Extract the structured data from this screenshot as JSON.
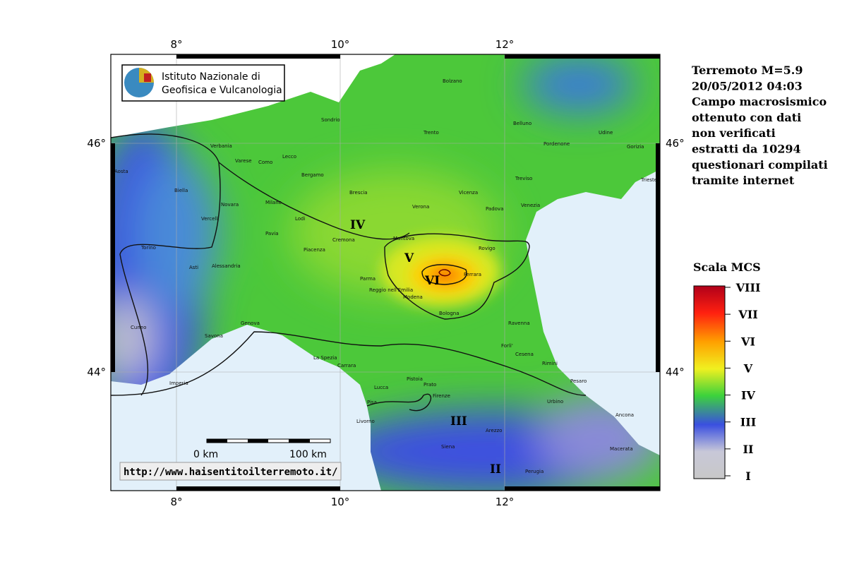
{
  "logo": {
    "line1": "Istituto Nazionale di",
    "line2": "Geofisica e Vulcanologia"
  },
  "url": "http://www.haisentitoilterremoto.it/",
  "scale_bar": {
    "start": "0 km",
    "end": "100 km"
  },
  "title_lines": [
    "Terremoto M=5.9",
    "20/05/2012 04:03",
    "Campo macrosismico",
    "ottenuto con dati",
    "non verificati",
    "estratti da 10294",
    "questionari compilati",
    "tramite internet"
  ],
  "longitude_labels": [
    "8°",
    "10°",
    "12°"
  ],
  "latitude_labels": [
    "46°",
    "44°"
  ],
  "intensity_zones": [
    "IV",
    "V",
    "VI",
    "III",
    "II"
  ],
  "legend": {
    "title": "Scala MCS",
    "levels": [
      "VIII",
      "VII",
      "VI",
      "V",
      "IV",
      "III",
      "II",
      "I"
    ]
  },
  "cities": [
    "Bolzano",
    "Sondrio",
    "Trento",
    "Belluno",
    "Udine",
    "Pordenone",
    "Gorizia",
    "Trieste",
    "Aosta",
    "Verbania",
    "Varese",
    "Como",
    "Lecco",
    "Bergamo",
    "Biella",
    "Brescia",
    "Vicenza",
    "Treviso",
    "Novara",
    "Milano",
    "Verona",
    "Padova",
    "Venezia",
    "Vercelli",
    "Lodi",
    "Pavia",
    "Cremona",
    "Piacenza",
    "Mantova",
    "Rovigo",
    "Torino",
    "Asti",
    "Alessandria",
    "Parma",
    "Ferrara",
    "Reggio nell'Emilia",
    "Modena",
    "Bologna",
    "Ravenna",
    "Genova",
    "Savona",
    "Cuneo",
    "Forli'",
    "Cesena",
    "Rimini",
    "La Spezia",
    "Carrara",
    "Pesaro",
    "Imperia",
    "Lucca",
    "Pistoia",
    "Prato",
    "Pisa",
    "Firenze",
    "Urbino",
    "Livorno",
    "Arezzo",
    "Ancona",
    "Siena",
    "Macerata",
    "Perugia"
  ]
}
